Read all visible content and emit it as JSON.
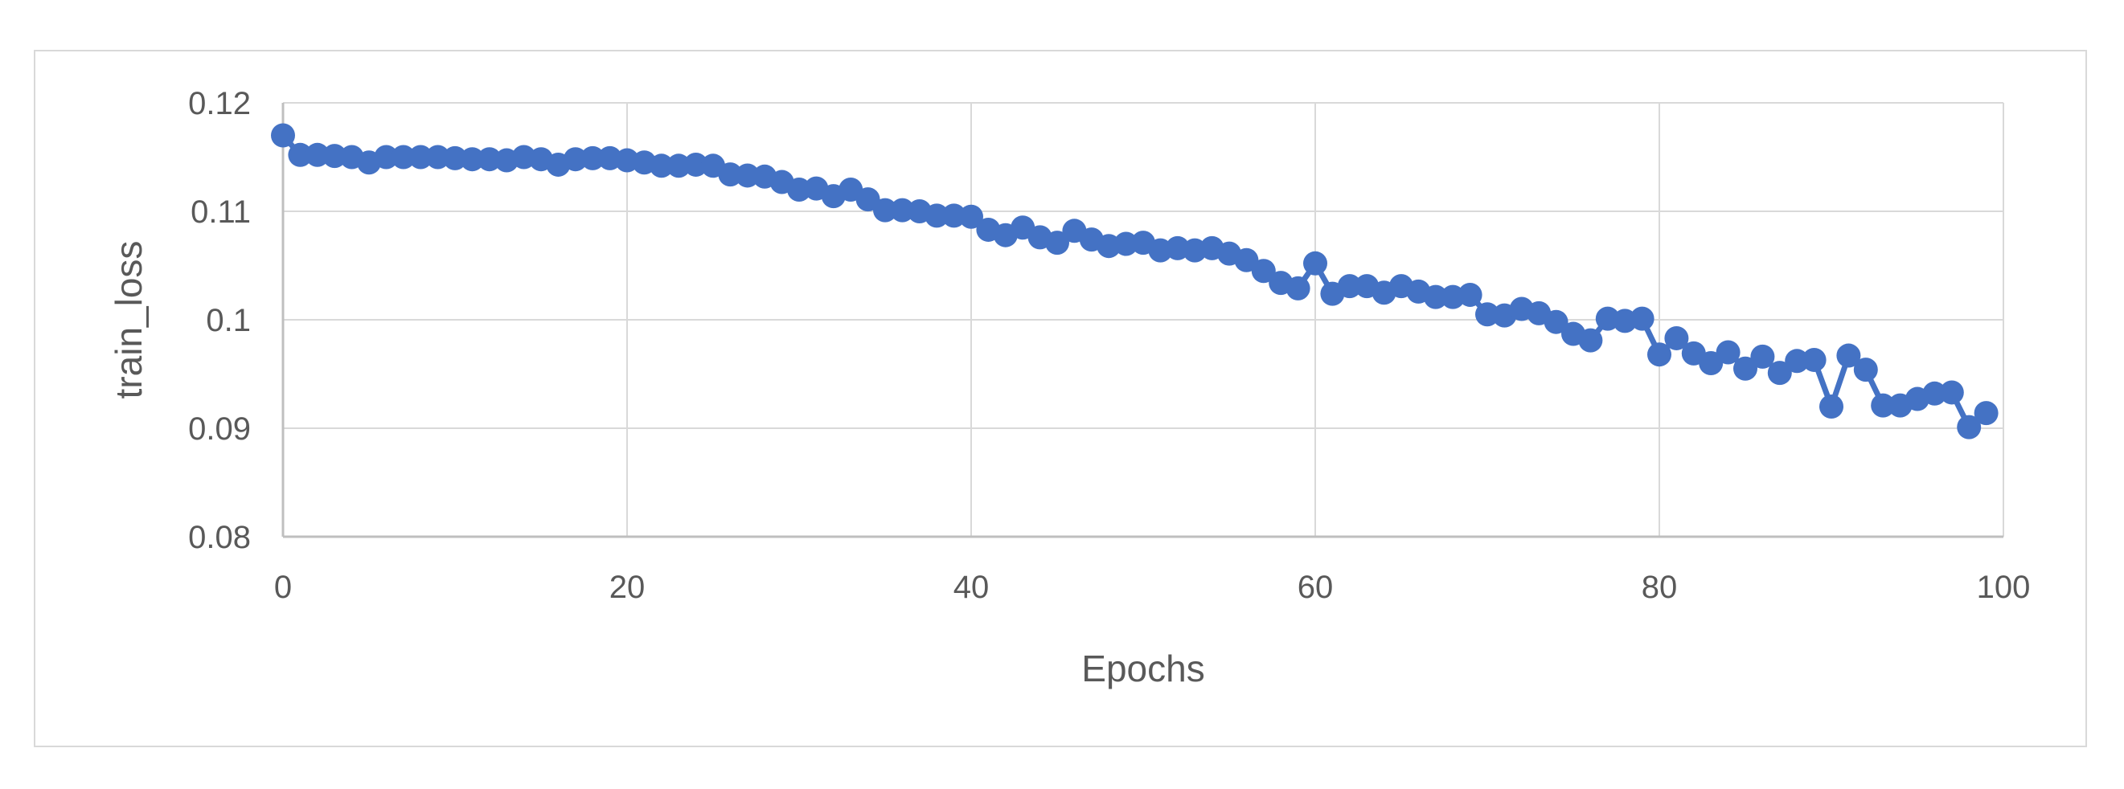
{
  "chart_data": {
    "type": "line",
    "title": "",
    "xlabel": "Epochs",
    "ylabel": "train_loss",
    "xlim": [
      0,
      100
    ],
    "ylim": [
      0.08,
      0.12
    ],
    "x_ticks": [
      0,
      20,
      40,
      60,
      80,
      100
    ],
    "y_ticks": [
      0.08,
      0.09,
      0.1,
      0.11,
      0.12
    ],
    "x_tick_labels": [
      "0",
      "20",
      "40",
      "60",
      "80",
      "100"
    ],
    "y_tick_labels": [
      "0.08",
      "0.09",
      "0.1",
      "0.11",
      "0.12"
    ],
    "grid": true,
    "legend": "none",
    "color": "#4472C4",
    "series": [
      {
        "x": [
          0,
          1,
          2,
          3,
          4,
          5,
          6,
          7,
          8,
          9,
          10,
          11,
          12,
          13,
          14,
          15,
          16,
          17,
          18,
          19,
          20,
          21,
          22,
          23,
          24,
          25,
          26,
          27,
          28,
          29,
          30,
          31,
          32,
          33,
          34,
          35,
          36,
          37,
          38,
          39,
          40,
          41,
          42,
          43,
          44,
          45,
          46,
          47,
          48,
          49,
          50,
          51,
          52,
          53,
          54,
          55,
          56,
          57,
          58,
          59,
          60,
          61,
          62,
          63,
          64,
          65,
          66,
          67,
          68,
          69,
          70,
          71,
          72,
          73,
          74,
          75,
          76,
          77,
          78,
          79,
          80,
          81,
          82,
          83,
          84,
          85,
          86,
          87,
          88,
          89,
          90,
          91,
          92,
          93,
          94,
          95,
          96,
          97,
          98,
          99
        ],
        "values": [
          0.117,
          0.1152,
          0.1152,
          0.1151,
          0.115,
          0.1145,
          0.115,
          0.115,
          0.115,
          0.115,
          0.1149,
          0.1148,
          0.1148,
          0.1147,
          0.115,
          0.1148,
          0.1143,
          0.1148,
          0.1149,
          0.1149,
          0.1147,
          0.1145,
          0.1142,
          0.1142,
          0.1143,
          0.1142,
          0.1134,
          0.1133,
          0.1132,
          0.1127,
          0.112,
          0.1121,
          0.1114,
          0.112,
          0.1111,
          0.1101,
          0.1101,
          0.11,
          0.1096,
          0.1096,
          0.1095,
          0.1083,
          0.1078,
          0.1085,
          0.1076,
          0.1071,
          0.1082,
          0.1074,
          0.1068,
          0.107,
          0.1071,
          0.1064,
          0.1066,
          0.1064,
          0.1066,
          0.1061,
          0.1055,
          0.1045,
          0.1034,
          0.1029,
          0.1052,
          0.1024,
          0.1031,
          0.1031,
          0.1025,
          0.1031,
          0.1026,
          0.1021,
          0.1021,
          0.1023,
          0.1005,
          0.1004,
          0.101,
          0.1006,
          0.0998,
          0.0987,
          0.0981,
          0.1001,
          0.0999,
          0.1001,
          0.0968,
          0.0983,
          0.0969,
          0.096,
          0.097,
          0.0955,
          0.0966,
          0.0951,
          0.0962,
          0.0963,
          0.092,
          0.0967,
          0.0954,
          0.0921,
          0.0921,
          0.0927,
          0.0932,
          0.0933,
          0.0901,
          0.0914
        ]
      }
    ]
  }
}
